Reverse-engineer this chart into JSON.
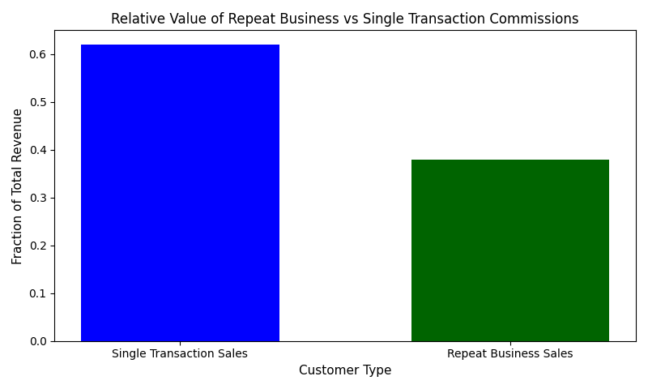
{
  "categories": [
    "Single Transaction Sales",
    "Repeat Business Sales"
  ],
  "values": [
    0.62,
    0.38
  ],
  "bar_colors": [
    "#0000ff",
    "#006400"
  ],
  "title": "Relative Value of Repeat Business vs Single Transaction Commissions",
  "xlabel": "Customer Type",
  "ylabel": "Fraction of Total Revenue",
  "ylim": [
    0,
    0.65
  ],
  "title_fontsize": 12,
  "label_fontsize": 11,
  "tick_fontsize": 10,
  "bar_width": 0.6,
  "background_color": "#ffffff"
}
